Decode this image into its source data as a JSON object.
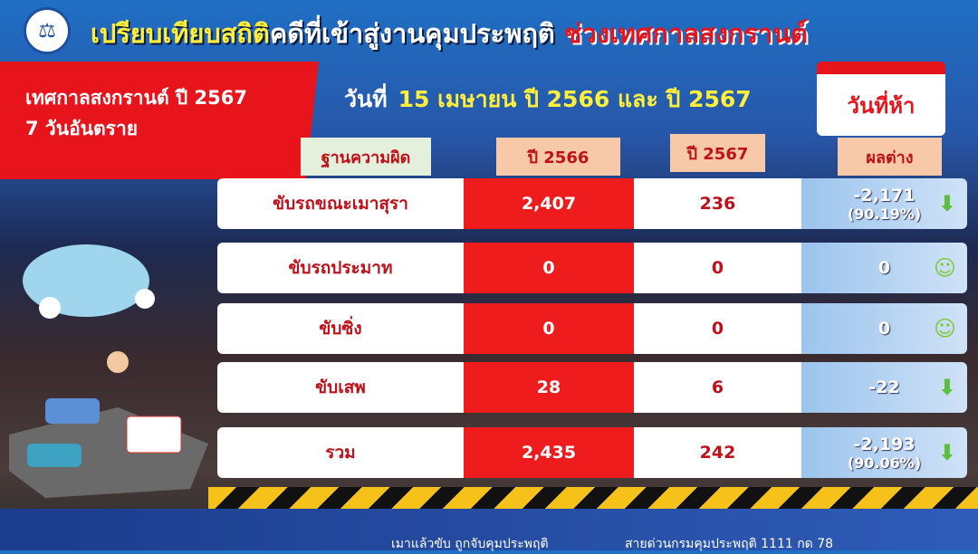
{
  "header": {
    "title_part1": "เปรียบเทียบสถิติ",
    "title_part2": "คดีที่เข้าสู่งานคุมประพฤติ",
    "title_part3": "ช่วงเทศกาลสงกรานต์",
    "festival": "เทศกาลสงกรานต์ ปี 2567",
    "days": "7 วันอันตราย",
    "date_label": "วันที่",
    "date_value": "15 เมษายน ปี 2566 และ ปี 2567",
    "calendar_day": "วันที่ห้า"
  },
  "table": {
    "headers": [
      "ฐานความผิด",
      "ปี 2566",
      "ปี 2567",
      "ผลต่าง"
    ],
    "rows": [
      {
        "offense": "ขับรถขณะเมาสุรา",
        "y2566": "2,407",
        "y2567": "236",
        "diff": "-2,171",
        "pct": "(90.19%)",
        "icon": "down-arrow"
      },
      {
        "offense": "ขับรถประมาท",
        "y2566": "0",
        "y2567": "0",
        "diff": "0",
        "pct": "",
        "icon": "smiley"
      },
      {
        "offense": "ขับซิ่ง",
        "y2566": "0",
        "y2567": "0",
        "diff": "0",
        "pct": "",
        "icon": "smiley"
      },
      {
        "offense": "ขับเสพ",
        "y2566": "28",
        "y2567": "6",
        "diff": "-22",
        "pct": "",
        "icon": "down-arrow"
      },
      {
        "offense": "รวม",
        "y2566": "2,435",
        "y2567": "242",
        "diff": "-2,193",
        "pct": "(90.06%)",
        "icon": "down-arrow"
      }
    ]
  },
  "footer": {
    "slogan": "เมาแล้วขับ ถูกจับคุมประพฤติ",
    "hotline": "สายด่วนกรมคุมประพฤติ 1111 กด 78"
  }
}
